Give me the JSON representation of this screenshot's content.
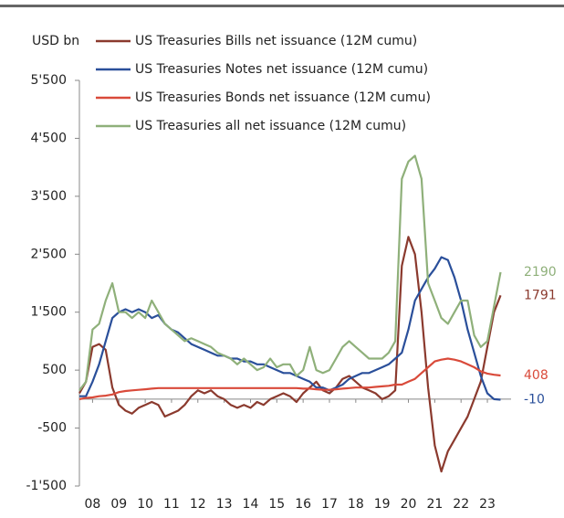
{
  "chart_data": {
    "type": "line",
    "ylabel": "USD bn",
    "x": [
      2008,
      2008.25,
      2008.5,
      2008.75,
      2009,
      2009.25,
      2009.5,
      2009.75,
      2010,
      2010.25,
      2010.5,
      2010.75,
      2011,
      2011.25,
      2011.5,
      2011.75,
      2012,
      2012.25,
      2012.5,
      2012.75,
      2013,
      2013.25,
      2013.5,
      2013.75,
      2014,
      2014.25,
      2014.5,
      2014.75,
      2015,
      2015.25,
      2015.5,
      2015.75,
      2016,
      2016.25,
      2016.5,
      2016.75,
      2017,
      2017.25,
      2017.5,
      2017.75,
      2018,
      2018.25,
      2018.5,
      2018.75,
      2019,
      2019.25,
      2019.5,
      2019.75,
      2020,
      2020.25,
      2020.5,
      2020.75,
      2021,
      2021.25,
      2021.5,
      2021.75,
      2022,
      2022.25,
      2022.5,
      2022.75,
      2023,
      2023.25,
      2023.5,
      2023.75,
      2024
    ],
    "series": [
      {
        "name": "US Treasuries Bills net issuance (12M cumu)",
        "color": "#8b3a2e",
        "values": [
          100,
          300,
          900,
          950,
          850,
          200,
          -100,
          -200,
          -250,
          -150,
          -100,
          -50,
          -100,
          -300,
          -250,
          -200,
          -100,
          50,
          150,
          100,
          150,
          50,
          0,
          -100,
          -150,
          -100,
          -150,
          -50,
          -100,
          0,
          50,
          100,
          50,
          -50,
          100,
          200,
          300,
          150,
          100,
          200,
          350,
          400,
          300,
          200,
          150,
          100,
          0,
          50,
          150,
          2300,
          2800,
          2500,
          1500,
          200,
          -800,
          -1250,
          -900,
          -700,
          -500,
          -300,
          0,
          300,
          900,
          1500,
          1791
        ]
      },
      {
        "name": "US Treasuries Notes net issuance (12M cumu)",
        "color": "#2a4f9a",
        "values": [
          50,
          50,
          300,
          600,
          1000,
          1400,
          1500,
          1550,
          1500,
          1550,
          1500,
          1400,
          1450,
          1300,
          1200,
          1150,
          1050,
          950,
          900,
          850,
          800,
          750,
          750,
          700,
          700,
          650,
          650,
          600,
          600,
          550,
          500,
          450,
          450,
          400,
          350,
          300,
          200,
          200,
          150,
          200,
          250,
          350,
          400,
          450,
          450,
          500,
          550,
          600,
          700,
          800,
          1200,
          1700,
          1900,
          2100,
          2250,
          2450,
          2400,
          2100,
          1700,
          1200,
          800,
          400,
          100,
          0,
          -10
        ]
      },
      {
        "name": "US Treasuries Bonds net issuance (12M cumu)",
        "color": "#d94a3a",
        "values": [
          0,
          20,
          30,
          50,
          60,
          80,
          120,
          140,
          150,
          160,
          170,
          180,
          190,
          190,
          190,
          190,
          190,
          190,
          190,
          190,
          190,
          190,
          190,
          190,
          190,
          190,
          190,
          190,
          190,
          190,
          190,
          190,
          190,
          190,
          180,
          180,
          170,
          160,
          160,
          170,
          180,
          190,
          200,
          200,
          200,
          210,
          220,
          230,
          250,
          250,
          300,
          350,
          450,
          550,
          650,
          680,
          700,
          680,
          650,
          600,
          550,
          480,
          440,
          420,
          408
        ]
      },
      {
        "name": "US Treasuries all net issuance (12M cumu)",
        "color": "#8fb07a",
        "values": [
          150,
          300,
          1200,
          1300,
          1700,
          2000,
          1500,
          1500,
          1400,
          1500,
          1400,
          1700,
          1500,
          1300,
          1200,
          1100,
          1000,
          1050,
          1000,
          950,
          900,
          800,
          750,
          700,
          600,
          700,
          600,
          500,
          550,
          700,
          550,
          600,
          600,
          400,
          500,
          900,
          500,
          450,
          500,
          700,
          900,
          1000,
          900,
          800,
          700,
          700,
          700,
          800,
          1000,
          3800,
          4100,
          4200,
          3800,
          2000,
          1700,
          1400,
          1300,
          1500,
          1700,
          1700,
          1100,
          900,
          1000,
          1600,
          2190
        ]
      }
    ],
    "annotations": [
      "1791",
      "-10",
      "408",
      "2190"
    ],
    "xlim": [
      2008,
      2024.4
    ],
    "xticks": [
      {
        "value": 2008.5,
        "label": "08"
      },
      {
        "value": 2009.5,
        "label": "09"
      },
      {
        "value": 2010.5,
        "label": "10"
      },
      {
        "value": 2011.5,
        "label": "11"
      },
      {
        "value": 2012.5,
        "label": "12"
      },
      {
        "value": 2013.5,
        "label": "13"
      },
      {
        "value": 2014.5,
        "label": "14"
      },
      {
        "value": 2015.5,
        "label": "15"
      },
      {
        "value": 2016.5,
        "label": "16"
      },
      {
        "value": 2017.5,
        "label": "17"
      },
      {
        "value": 2018.5,
        "label": "18"
      },
      {
        "value": 2019.5,
        "label": "19"
      },
      {
        "value": 2020.5,
        "label": "20"
      },
      {
        "value": 2021.5,
        "label": "21"
      },
      {
        "value": 2022.5,
        "label": "22"
      },
      {
        "value": 2023.5,
        "label": "23"
      }
    ],
    "ylim": [
      -1500,
      5500
    ],
    "yticks": [
      {
        "value": -1500,
        "label": "-1'500"
      },
      -500,
      500,
      {
        "value": 1500,
        "label": "1'500"
      },
      {
        "value": 2500,
        "label": "2'500"
      },
      {
        "value": 3500,
        "label": "3'500"
      },
      {
        "value": 4500,
        "label": "4'500"
      },
      {
        "value": 5500,
        "label": "5'500"
      }
    ],
    "grid": false
  }
}
